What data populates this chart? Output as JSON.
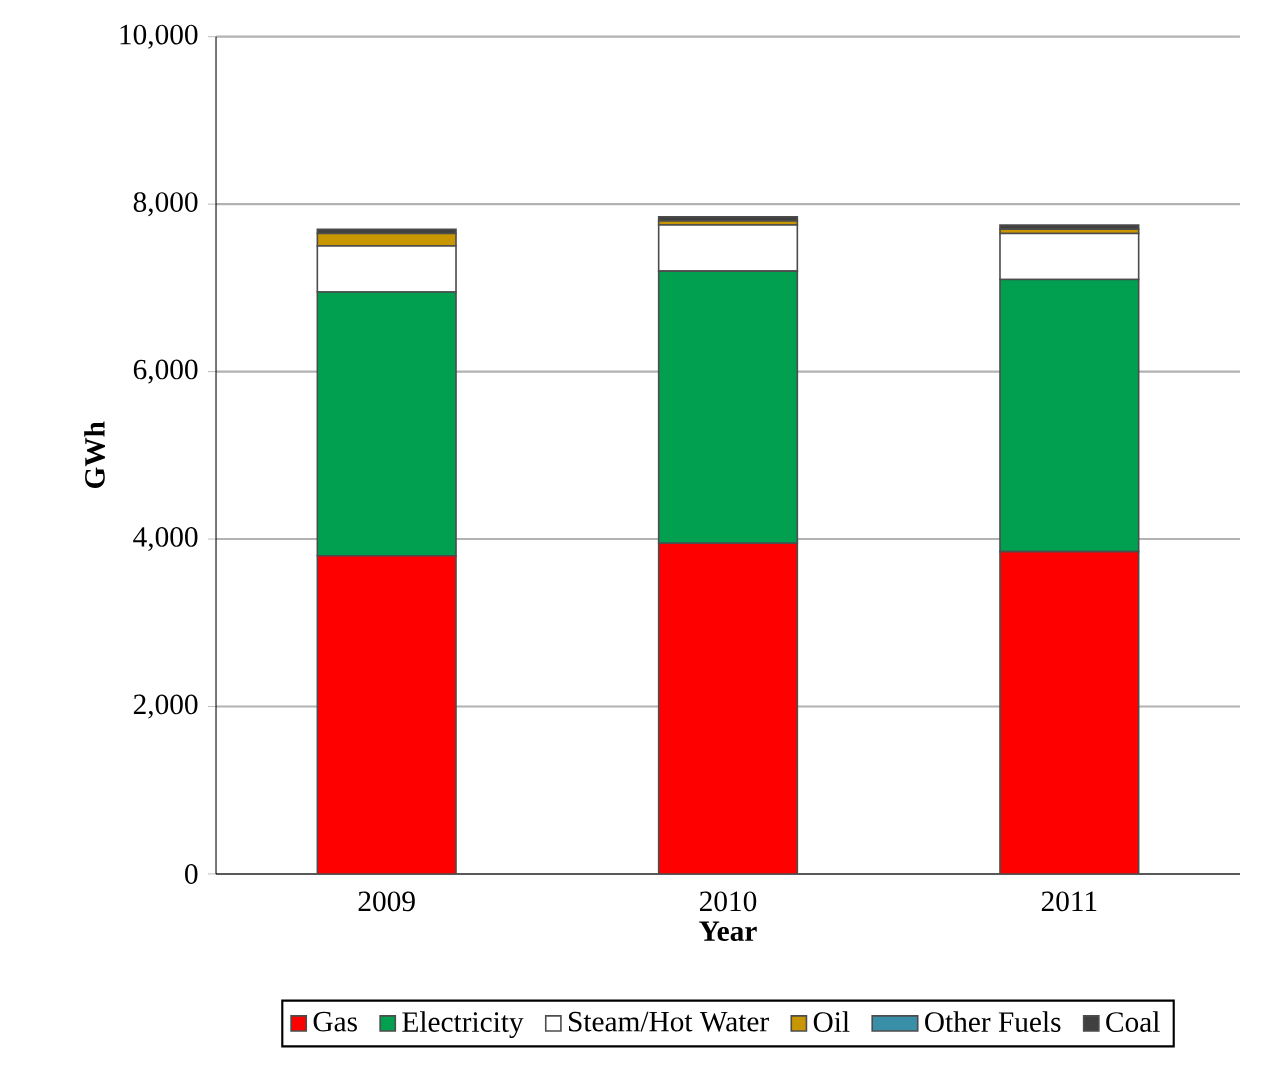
{
  "chart_data": {
    "type": "bar",
    "stacked": true,
    "xlabel": "Year",
    "ylabel": "GWh",
    "categories": [
      "2009",
      "2010",
      "2011"
    ],
    "series": [
      {
        "name": "Gas",
        "color": "#ff0000",
        "values": [
          3800,
          3950,
          3850
        ]
      },
      {
        "name": "Electricity",
        "color": "#00a050",
        "values": [
          3150,
          3250,
          3250
        ]
      },
      {
        "name": "Steam/Hot Water",
        "color": "#ffffff",
        "values": [
          550,
          550,
          550
        ]
      },
      {
        "name": "Oil",
        "color": "#c89600",
        "values": [
          150,
          50,
          50
        ]
      },
      {
        "name": "Other Fuels",
        "color": "#3a8fa8",
        "values": [
          null,
          null,
          null
        ]
      },
      {
        "name": "Coal",
        "color": "#404040",
        "values": [
          50,
          50,
          50
        ]
      }
    ],
    "ylim": [
      0,
      10000
    ],
    "yticks": [
      0,
      {
        "value": 2000,
        "label": "2,000"
      },
      {
        "value": 4000,
        "label": "4,000"
      },
      {
        "value": 6000,
        "label": "6,000"
      },
      {
        "value": 8000,
        "label": "8,000"
      },
      {
        "value": 10000,
        "label": "10,000"
      }
    ],
    "grid": "y",
    "legend": "bottom"
  }
}
